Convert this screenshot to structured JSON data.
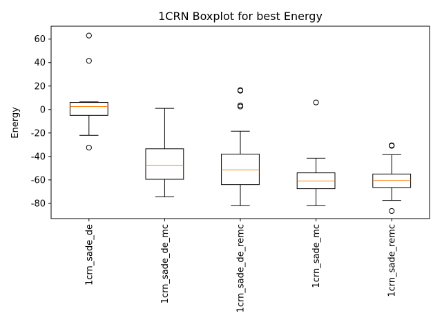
{
  "chart_data": {
    "type": "boxplot",
    "title": "1CRN Boxplot for best Energy",
    "xlabel": "",
    "ylabel": "Energy",
    "ylim": [
      -93,
      71
    ],
    "yticks": [
      -80,
      -60,
      -40,
      -20,
      0,
      20,
      40,
      60
    ],
    "categories": [
      "1crn_sade_de",
      "1crn_sade_de_mc",
      "1crn_sade_de_remc",
      "1crn_sade_mc",
      "1crn_sade_remc"
    ],
    "boxes": [
      {
        "whisker_low": -22,
        "q1": -5,
        "median": 2.5,
        "q3": 6,
        "whisker_high": 6.5,
        "outliers": [
          63,
          41.5,
          -32.5
        ]
      },
      {
        "whisker_low": -74.5,
        "q1": -59.5,
        "median": -47.5,
        "q3": -33.5,
        "whisker_high": 1,
        "outliers": []
      },
      {
        "whisker_low": -82,
        "q1": -64,
        "median": -51.5,
        "q3": -38,
        "whisker_high": -18.5,
        "outliers": [
          16.5,
          16,
          3.5,
          2.5
        ]
      },
      {
        "whisker_low": -82,
        "q1": -67.5,
        "median": -61,
        "q3": -54,
        "whisker_high": -41.5,
        "outliers": [
          6
        ]
      },
      {
        "whisker_low": -77.5,
        "q1": -66.5,
        "median": -60.5,
        "q3": -55,
        "whisker_high": -38.5,
        "outliers": [
          -30.5,
          -31,
          -86.5
        ]
      }
    ],
    "colors": {
      "box": "#000000",
      "median": "#ff7f0e",
      "outlier": "#000000"
    },
    "grid": false,
    "legend": "none"
  }
}
